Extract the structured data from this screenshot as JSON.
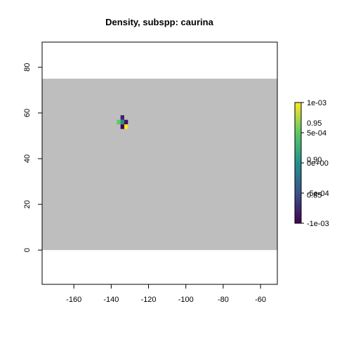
{
  "chart_data": {
    "type": "heatmap",
    "title": "Density, subspp: caurina",
    "xlabel": "",
    "ylabel": "",
    "xlim": [
      -177,
      -51
    ],
    "ylim": [
      -15,
      91
    ],
    "x_ticks": [
      -160,
      -140,
      -120,
      -100,
      -80,
      -60
    ],
    "x_tick_labels": [
      "-160",
      "-140",
      "-120",
      "-100",
      "-80",
      "-60"
    ],
    "y_ticks": [
      0,
      20,
      40,
      60,
      80
    ],
    "y_tick_labels": [
      "0",
      "20",
      "40",
      "60",
      "80"
    ],
    "grid": false,
    "background_region": {
      "x": [
        -177,
        -51
      ],
      "y": [
        0,
        75
      ],
      "color": "#bebebe"
    },
    "cell_size": 2,
    "cells": [
      {
        "x": -134,
        "y": 58,
        "value": -0.0008
      },
      {
        "x": -136,
        "y": 56,
        "value": 0.0005
      },
      {
        "x": -134,
        "y": 56,
        "value": 0.0
      },
      {
        "x": -132,
        "y": 56,
        "value": -0.0009
      },
      {
        "x": -134,
        "y": 54,
        "value": -0.001
      },
      {
        "x": -132,
        "y": 54,
        "value": 0.001
      }
    ],
    "colorbar": {
      "placement": "right",
      "range": [
        -0.001,
        0.001
      ],
      "colors": [
        "#440154",
        "#3b528b",
        "#21918c",
        "#5ec962",
        "#fde725"
      ],
      "ticks": [
        {
          "value": 0.001,
          "label": "1e-03"
        },
        {
          "value": 0.0005,
          "label": "5e-04"
        },
        {
          "value": 0.0,
          "label": "0e+00"
        },
        {
          "value": -0.0005,
          "label": "-5e-04"
        },
        {
          "value": -0.001,
          "label": "-1e-03"
        }
      ],
      "overlay_labels": [
        {
          "value": 0.00066,
          "label": "0.95"
        },
        {
          "value": 6e-05,
          "label": "0.90"
        },
        {
          "value": -0.00053,
          "label": "0.85"
        }
      ]
    }
  }
}
